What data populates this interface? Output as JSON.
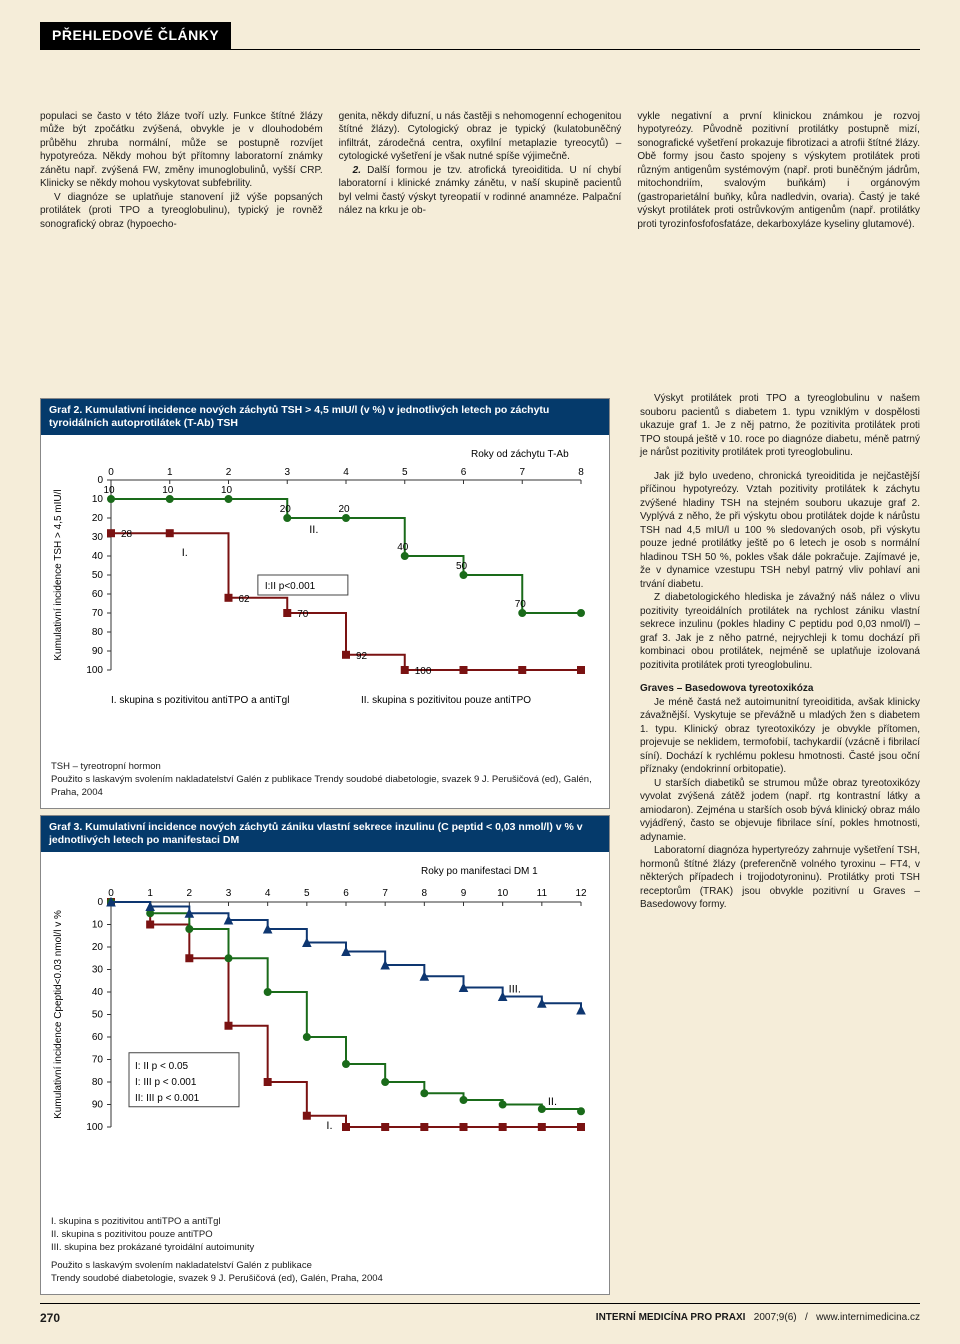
{
  "header": {
    "section": "PŘEHLEDOVÉ ČLÁNKY"
  },
  "cols": {
    "p1": "populaci se často v této žláze tvoří uzly. Funkce štítné žlázy může být zpočátku zvýšená, obvykle je v dlouhodobém průběhu zhruba normální, může se postupně rozvíjet hypotyreóza. Někdy mohou být přítomny laboratorní známky zánětu např. zvýšená FW, změny imunoglobulinů, vyšší CRP. Klinicky se někdy mohou vyskytovat subfebrility.",
    "p2": "V diagnóze se uplatňuje stanovení již výše popsaných protilátek (proti TPO a tyreoglobulinu), typický je rovněž sonografický obraz (hypoecho-",
    "p3": "genita, někdy difuzní, u nás častěji s nehomogenní echogenitou štítné žlázy). Cytologický obraz je typický (kulatobuněčný infiltrát, zárodečná centra, oxyfilní metaplazie tyreocytů) – cytologické vyšetření je však nutné spíše výjimečně.",
    "p4lead": "2.",
    "p4": " Další formou je tzv. atrofická tyreoiditida. U ní chybí laboratorní i klinické známky zánětu, v naší skupině pacientů byl velmi častý výskyt tyreopatií v rodinné anamnéze. Palpační nález na krku je ob-",
    "p5": "vykle negativní a první klinickou známkou je rozvoj hypotyreózy. Původně pozitivní protilátky postupně mizí, sonografické vyšetření prokazuje fibrotizaci a atrofii štítné žlázy. Obě formy jsou často spojeny s výskytem protilátek proti různým antigenům systémovým (např. proti buněčným jádrům, mitochondriím, svalovým buňkám) i orgánovým (gastroparietální buňky, kůra nadledvin, ovaria). Častý je také výskyt protilátek proti ostrůvkovým antigenům (např. protilátky proti tyrozinfosfofosfatáze, dekarboxyláze kyseliny glutamové)."
  },
  "right": {
    "r1": "Výskyt protilátek proti TPO a tyreoglobulinu v našem souboru pacientů s diabetem 1. typu vzniklým v dospělosti ukazuje graf 1. Je z něj patrno, že pozitivita protilátek proti TPO stoupá ještě v 10. roce po diagnóze diabetu, méně patrný je nárůst pozitivity protilátek proti tyreoglobulinu.",
    "r2": "Jak již bylo uvedeno, chronická tyreoiditida je nejčastější příčinou hypotyreózy. Vztah pozitivity protilátek k záchytu zvýšené hladiny TSH na stejném souboru ukazuje graf 2. Vyplývá z něho, že při výskytu obou protilátek dojde k nárůstu TSH nad 4,5 mIU/l u 100 % sledovaných osob, při výskytu pouze jedné protilátky ještě po 6 letech je osob s normální hladinou TSH 50 %, pokles však dále pokračuje. Zajímavé je, že v dynamice vzestupu TSH nebyl patrný vliv pohlaví ani trvání diabetu.",
    "r3": "Z diabetologického hlediska je závažný náš nález o vlivu pozitivity tyreoidálních protilátek na rychlost zániku vlastní sekrece inzulinu (pokles hladiny C peptidu pod 0,03 nmol/l) – graf 3. Jak je z něho patrné, nejrychleji k tomu dochází při kombinaci obou protilátek, nejméně se uplatňuje izolovaná pozitivita protilátek proti tyreoglobulinu.",
    "h": "Graves – Basedowova tyreotoxikóza",
    "r4": "Je méně častá než autoimunitní tyreoiditida, avšak klinicky závažnější. Vyskytuje se převážně u mladých žen s diabetem 1. typu. Klinický obraz tyreotoxikózy je obvykle přítomen, projevuje se neklidem, termofobií, tachykardií (vzácně i fibrilací síní). Dochází k rychlému poklesu hmotnosti. Časté jsou oční příznaky (endokrinní orbitopatie).",
    "r5": "U starších diabetiků se strumou může obraz tyreotoxikózy vyvolat zvýšená zátěž jodem (např. rtg kontrastní látky a amiodaron). Zejména u starších osob bývá klinický obraz málo vyjádřený, často se objevuje fibrilace síní, pokles hmotnosti, adynamie.",
    "r6": "Laboratorní diagnóza hypertyreózy zahrnuje vyšetření TSH, hormonů štítné žlázy (preferenčně volného tyroxinu – FT4, v některých případech i trojjodotyroninu). Protilátky proti TSH receptorům (TRAK) jsou obvykle pozitivní u Graves – Basedowovy formy."
  },
  "chart2": {
    "title": "Graf 2. Kumulativní incidence nových záchytů TSH > 4,5 mIU/l (v %) v jednotlivých letech po záchytu tyroidálních autoprotilátek (T-Ab) TSH",
    "subtitle": "Roky od záchytu T-Ab",
    "x": [
      0,
      1,
      2,
      3,
      4,
      5,
      6,
      7,
      8
    ],
    "yticks": [
      "0",
      "10",
      "20",
      "30",
      "40",
      "50",
      "60",
      "70",
      "80",
      "90",
      "100"
    ],
    "ylabel": "Kumulativní incidence TSH > 4,5 mIU/l",
    "s1": {
      "label": "I.",
      "pts": [
        28,
        28,
        62,
        70,
        92,
        100,
        100,
        100,
        100
      ],
      "color": "#7a1212",
      "marker": "square"
    },
    "s2": {
      "label": "II.",
      "pts": [
        10,
        10,
        10,
        20,
        20,
        40,
        50,
        70,
        70
      ],
      "color": "#1a6b1a",
      "marker": "circle"
    },
    "numlabels_s1": [
      "28",
      "",
      "62",
      "70",
      "92",
      "100"
    ],
    "numlabels_s2": [
      "10",
      "10",
      "10",
      "20",
      "20",
      "40",
      "50",
      "70"
    ],
    "pvbox": "I:II p<0.001",
    "legend1": "I. skupina s pozitivitou antiTPO a antiTgl",
    "legend2": "II. skupina s pozitivitou pouze antiTPO",
    "tsh_note": "TSH – tyreotropní hormon",
    "credit": "Použito s laskavým svolením nakladatelství Galén z publikace Trendy soudobé diabetologie, svazek 9 J. Perušičová (ed), Galén, Praha, 2004"
  },
  "chart3": {
    "title": "Graf 3. Kumulativní incidence nových záchytů zániku vlastní sekrece inzulinu (C peptid < 0,03 nmol/l) v % v jednotlivých letech po manifestaci DM",
    "subtitle": "Roky po manifestaci DM 1",
    "x": [
      0,
      1,
      2,
      3,
      4,
      5,
      6,
      7,
      8,
      9,
      10,
      11,
      12
    ],
    "yticks": [
      "0",
      "10",
      "20",
      "30",
      "40",
      "50",
      "60",
      "70",
      "80",
      "90",
      "100"
    ],
    "ylabel": "Kumulativní incidence Cpeptid<0.03 nmol/l v %",
    "s1": {
      "label": "I.",
      "pts": [
        0,
        10,
        25,
        55,
        80,
        95,
        100,
        100,
        100,
        100,
        100,
        100,
        100
      ],
      "color": "#7a1212",
      "marker": "square"
    },
    "s2": {
      "label": "II.",
      "pts": [
        0,
        5,
        12,
        25,
        40,
        60,
        72,
        80,
        85,
        88,
        90,
        92,
        93
      ],
      "color": "#1a6b1a",
      "marker": "circle"
    },
    "s3": {
      "label": "III.",
      "pts": [
        0,
        2,
        5,
        8,
        12,
        18,
        22,
        28,
        33,
        38,
        42,
        45,
        48
      ],
      "color": "#0e3670",
      "marker": "triangle"
    },
    "pvbox": [
      "I: II p < 0.05",
      "I: III p < 0.001",
      "II: III p < 0.001"
    ],
    "legend1": "I. skupina s pozitivitou antiTPO a antiTgl",
    "legend2": "II. skupina s pozitivitou pouze antiTPO",
    "legend3": "III. skupina bez prokázané tyroidální autoimunity",
    "credit": "Použito s laskavým svolením nakladatelství Galén z publikace\nTrendy soudobé diabetologie, svazek 9 J. Perušičová (ed), Galén, Praha, 2004"
  },
  "footer": {
    "page": "270",
    "journal": "INTERNÍ MEDICÍNA PRO PRAXI",
    "issue": "2007;9(6)",
    "sep": "/",
    "url": "www.internimedicina.cz"
  }
}
